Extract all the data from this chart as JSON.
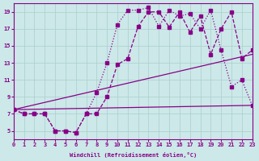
{
  "xlabel": "Windchill (Refroidissement éolien,°C)",
  "bg_color": "#cce8e8",
  "grid_color": "#aacece",
  "line_color": "#880088",
  "xlim": [
    0,
    23
  ],
  "ylim": [
    4,
    20
  ],
  "xticks": [
    0,
    1,
    2,
    3,
    4,
    5,
    6,
    7,
    8,
    9,
    10,
    11,
    12,
    13,
    14,
    15,
    16,
    17,
    18,
    19,
    20,
    21,
    22,
    23
  ],
  "yticks": [
    5,
    7,
    9,
    11,
    13,
    15,
    17,
    19
  ],
  "line1_x": [
    0,
    1,
    2,
    3,
    4,
    5,
    6,
    7,
    8,
    9,
    10,
    11,
    12,
    13,
    14,
    15,
    16,
    17,
    18,
    19,
    20,
    21,
    22,
    23
  ],
  "line1_y": [
    7.5,
    7.0,
    7.0,
    7.0,
    5.0,
    5.0,
    4.8,
    7.0,
    9.5,
    13.0,
    17.5,
    19.2,
    19.2,
    19.5,
    17.3,
    19.2,
    18.5,
    18.8,
    17.0,
    19.2,
    14.5,
    10.2,
    11.0,
    8.0
  ],
  "line2_x": [
    0,
    1,
    2,
    3,
    4,
    5,
    6,
    7,
    8,
    9,
    10,
    11,
    12,
    13,
    14,
    15,
    16,
    17,
    18,
    19,
    20,
    21,
    22,
    23
  ],
  "line2_y": [
    7.5,
    7.0,
    7.0,
    7.0,
    5.0,
    5.0,
    4.8,
    7.0,
    7.0,
    9.0,
    12.8,
    13.5,
    17.3,
    19.0,
    19.0,
    17.2,
    19.0,
    16.6,
    18.5,
    14.0,
    17.0,
    19.0,
    13.5,
    14.5
  ],
  "line3_x": [
    0,
    23
  ],
  "line3_y": [
    7.5,
    14.0
  ],
  "line4_x": [
    0,
    23
  ],
  "line4_y": [
    7.5,
    8.0
  ]
}
